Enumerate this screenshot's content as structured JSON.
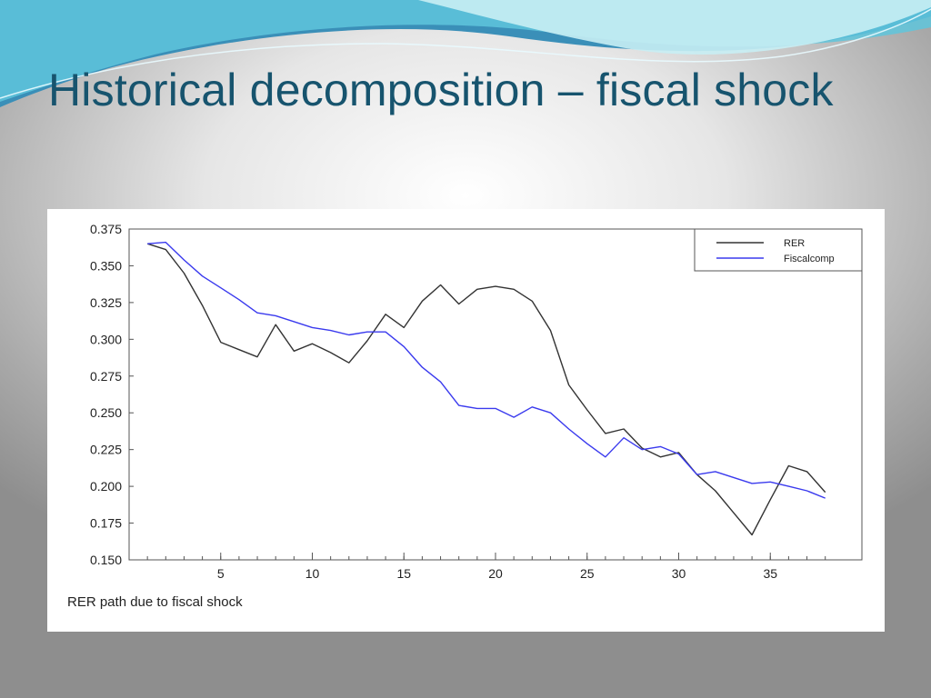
{
  "slide": {
    "title": "Historical decomposition – fiscal shock",
    "accent_colors": [
      "#3a8fb8",
      "#5fc6dc",
      "#a9e3ee"
    ],
    "title_color": "#17546e"
  },
  "chart_data": {
    "type": "line",
    "title": "",
    "caption": "RER path due to fiscal shock",
    "xlabel": "",
    "ylabel": "",
    "xlim": [
      0,
      40
    ],
    "ylim": [
      0.15,
      0.375
    ],
    "x_ticks": [
      5,
      10,
      15,
      20,
      25,
      30,
      35
    ],
    "y_ticks": [
      "0.150",
      "0.175",
      "0.200",
      "0.225",
      "0.250",
      "0.275",
      "0.300",
      "0.325",
      "0.350",
      "0.375"
    ],
    "grid": false,
    "legend": "top-right",
    "x": [
      1,
      2,
      3,
      4,
      5,
      6,
      7,
      8,
      9,
      10,
      11,
      12,
      13,
      14,
      15,
      16,
      17,
      18,
      19,
      20,
      21,
      22,
      23,
      24,
      25,
      26,
      27,
      28,
      29,
      30,
      31,
      32,
      33,
      34,
      35,
      36,
      37,
      38
    ],
    "series": [
      {
        "name": "RER",
        "color": "#333333",
        "values": [
          0.365,
          0.361,
          0.345,
          0.323,
          0.298,
          0.293,
          0.288,
          0.31,
          0.292,
          0.297,
          0.291,
          0.284,
          0.299,
          0.317,
          0.308,
          0.326,
          0.337,
          0.324,
          0.334,
          0.336,
          0.334,
          0.326,
          0.306,
          0.269,
          0.252,
          0.236,
          0.239,
          0.226,
          0.22,
          0.223,
          0.208,
          0.197,
          0.182,
          0.167,
          0.191,
          0.214,
          0.21,
          0.196
        ]
      },
      {
        "name": "Fiscalcomp",
        "color": "#3a3aee",
        "values": [
          0.365,
          0.366,
          0.354,
          0.343,
          0.335,
          0.327,
          0.318,
          0.316,
          0.312,
          0.308,
          0.306,
          0.303,
          0.305,
          0.305,
          0.295,
          0.281,
          0.271,
          0.255,
          0.253,
          0.253,
          0.247,
          0.254,
          0.25,
          0.239,
          0.229,
          0.22,
          0.233,
          0.225,
          0.227,
          0.222,
          0.208,
          0.21,
          0.206,
          0.202,
          0.203,
          0.2,
          0.197,
          0.192
        ]
      }
    ]
  }
}
